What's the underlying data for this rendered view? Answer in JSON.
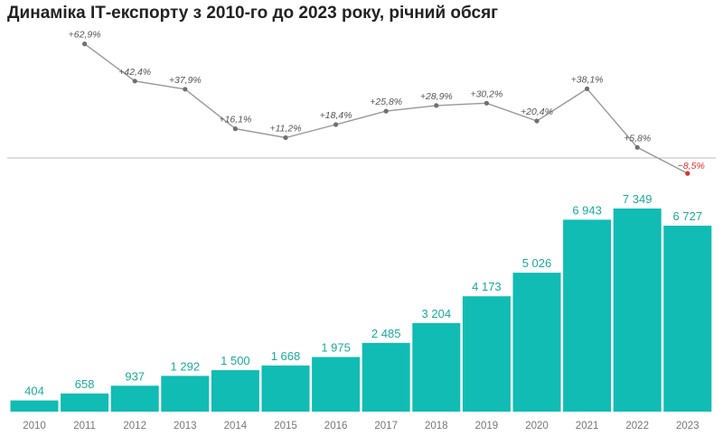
{
  "title": "Динаміка ІТ-експорту з 2010-го до 2023 року, річний обсяг",
  "colors": {
    "bar": "#10bcb3",
    "bar_label": "#1aa9a1",
    "line": "#999999",
    "line_point": "#707070",
    "growth_label": "#555555",
    "negative_label": "#e03030",
    "negative_point": "#e03030",
    "baseline": "#bdbdbd",
    "tick_label": "#777777"
  },
  "chart_data": [
    {
      "type": "bar",
      "categories": [
        "2010",
        "2011",
        "2012",
        "2013",
        "2014",
        "2015",
        "2016",
        "2017",
        "2018",
        "2019",
        "2020",
        "2021",
        "2022",
        "2023"
      ],
      "values": [
        404,
        658,
        937,
        1292,
        1500,
        1668,
        1975,
        2485,
        3204,
        4173,
        5026,
        6943,
        7349,
        6727
      ],
      "value_labels": [
        "404",
        "658",
        "937",
        "1 292",
        "1 500",
        "1 668",
        "1 975",
        "2 485",
        "3 204",
        "4 173",
        "5 026",
        "6 943",
        "7 349",
        "6 727"
      ],
      "ylim": [
        0,
        7349
      ],
      "grid": false
    },
    {
      "type": "line",
      "categories": [
        "2011",
        "2012",
        "2013",
        "2014",
        "2015",
        "2016",
        "2017",
        "2018",
        "2019",
        "2020",
        "2021",
        "2022",
        "2023"
      ],
      "values": [
        62.9,
        42.4,
        37.9,
        16.1,
        11.2,
        18.4,
        25.8,
        28.9,
        30.2,
        20.4,
        38.1,
        5.8,
        -8.5
      ],
      "value_labels": [
        "+62,9%",
        "+42,4%",
        "+37,9%",
        "+16,1%",
        "+11,2%",
        "+18,4%",
        "+25,8%",
        "+28,9%",
        "+30,2%",
        "+20,4%",
        "+38,1%",
        "+5,8%",
        "−8,5%"
      ],
      "baseline": 0,
      "grid": false
    }
  ]
}
